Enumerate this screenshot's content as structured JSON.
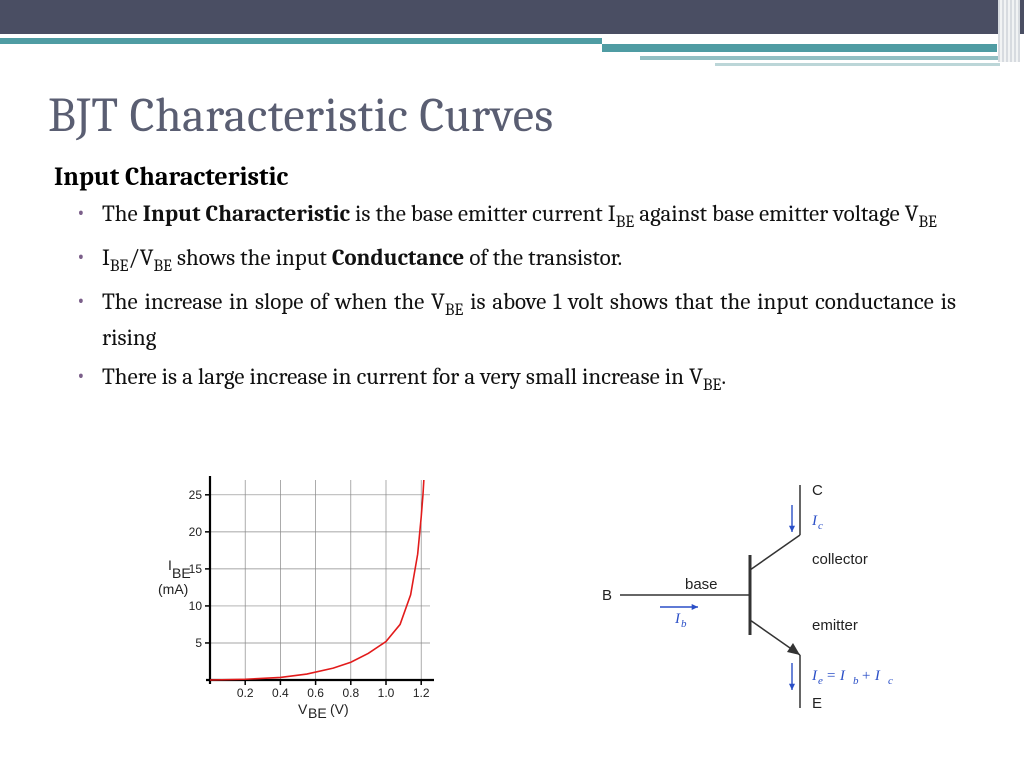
{
  "title": "BJT Characteristic Curves",
  "subhead": "Input Characteristic",
  "bullets": {
    "b1": {
      "t1": "The ",
      "t2": "Input Characteristic",
      "t3": " is the base emitter current I",
      "t4": "BE",
      "t5": " against base emitter voltage V",
      "t6": "BE"
    },
    "b2": {
      "t1": "I",
      "t2": "BE",
      "t3": "/V",
      "t4": "BE",
      "t5": " shows the input ",
      "t6": "Conductance",
      "t7": " of the transistor."
    },
    "b3": {
      "t1": "The increase in slope of when the V",
      "t2": "BE",
      "t3": " is above 1 volt shows that the input conductance is rising"
    },
    "b4": {
      "t1": "There is a large increase in current for a very small increase in V",
      "t2": "BE",
      "t3": "."
    }
  },
  "chart": {
    "type": "line",
    "background_color": "#ffffff",
    "grid_color": "#888888",
    "axis_color": "#000000",
    "curve_color": "#e21b1b",
    "y_label_main": "I",
    "y_label_sub": "BE",
    "y_label_unit": "(mA)",
    "y_ticks": [
      5,
      10,
      15,
      20,
      25
    ],
    "y_tick_labels": [
      "5",
      "10",
      "15",
      "20",
      "25"
    ],
    "ylim": [
      0,
      27
    ],
    "x_label_main": "V",
    "x_label_sub": "BE",
    "x_label_unit": "(V)",
    "x_ticks": [
      0.2,
      0.4,
      0.6,
      0.8,
      1.0,
      1.2
    ],
    "x_tick_labels": [
      "0.2",
      "0.4",
      "0.6",
      "0.8",
      "1.0",
      "1.2"
    ],
    "xlim": [
      0,
      1.25
    ],
    "curve": [
      [
        0.0,
        0.0
      ],
      [
        0.2,
        0.1
      ],
      [
        0.4,
        0.35
      ],
      [
        0.55,
        0.8
      ],
      [
        0.7,
        1.6
      ],
      [
        0.8,
        2.4
      ],
      [
        0.9,
        3.6
      ],
      [
        1.0,
        5.2
      ],
      [
        1.08,
        7.5
      ],
      [
        1.14,
        11.5
      ],
      [
        1.18,
        17.0
      ],
      [
        1.2,
        22.0
      ],
      [
        1.21,
        25.0
      ],
      [
        1.215,
        27.0
      ]
    ],
    "line_width": 1.6,
    "axis_width": 2.2
  },
  "diagram": {
    "type": "bjt-symbol",
    "line_color": "#333333",
    "arrow_color": "#2a4fc7",
    "label_color": "#222222",
    "nodes": {
      "B": "B",
      "base": "base",
      "C": "C",
      "E": "E",
      "collector": "collector",
      "emitter": "emitter"
    },
    "currents": {
      "ic": {
        "sym": "I",
        "sub": "c"
      },
      "ib": {
        "sym": "I",
        "sub": "b"
      },
      "ie": {
        "sym": "I",
        "sub_expr": "e",
        "eq": " = I",
        "sub2": "b",
        "plus": " + I",
        "sub3": "c"
      }
    }
  },
  "colors": {
    "title": "#5a5e72",
    "bullet_marker": "#7b5f8a",
    "top_band": "#4a4e63",
    "teal1": "#4f9ca3",
    "teal2": "#92bfc3",
    "teal3": "#bcd6d8"
  }
}
